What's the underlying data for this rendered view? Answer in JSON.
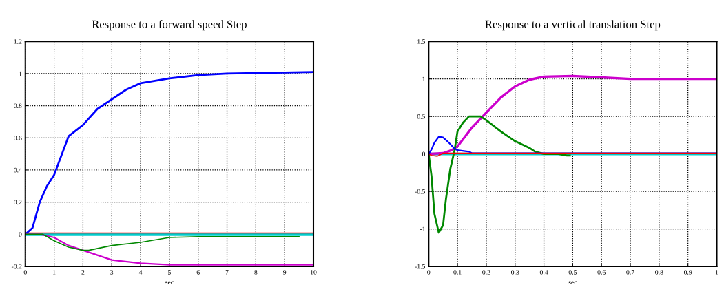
{
  "chart_data": [
    {
      "type": "line",
      "title": "Response to a forward speed Step",
      "xlabel": "sec",
      "xlim": [
        0,
        10
      ],
      "xticks": [
        0,
        1,
        2,
        3,
        4,
        5,
        6,
        7,
        8,
        9,
        10
      ],
      "ylim": [
        -0.2,
        1.2
      ],
      "yticks": [
        -0.2,
        0,
        0.2,
        0.4,
        0.6,
        0.8,
        1,
        1.2
      ],
      "grid": true,
      "line_style": "solid",
      "series": [
        {
          "color": "#ff0000",
          "x": [
            0,
            10
          ],
          "values": [
            0.003,
            0.003
          ]
        },
        {
          "color": "#00cccc",
          "x": [
            0,
            10
          ],
          "values": [
            -0.003,
            -0.003
          ]
        },
        {
          "color": "#0000ff",
          "x": [
            0,
            0.25,
            0.5,
            0.75,
            1,
            1.5,
            2,
            2.5,
            3,
            3.5,
            4,
            5,
            6,
            7,
            10
          ],
          "values": [
            0,
            0.04,
            0.2,
            0.3,
            0.37,
            0.61,
            0.68,
            0.78,
            0.84,
            0.9,
            0.94,
            0.97,
            0.99,
            1,
            1.01
          ]
        },
        {
          "color": "#cc00cc",
          "x": [
            0,
            0.5,
            1,
            1.5,
            2,
            2.5,
            3,
            4,
            5,
            10
          ],
          "values": [
            0,
            0,
            -0.02,
            -0.07,
            -0.1,
            -0.13,
            -0.16,
            -0.18,
            -0.19,
            -0.19
          ]
        },
        {
          "color": "#008800",
          "x": [
            0,
            0.6,
            1,
            1.5,
            2,
            2.2,
            3,
            4,
            5,
            6,
            9.5
          ],
          "values": [
            0,
            0,
            -0.04,
            -0.08,
            -0.1,
            -0.1,
            -0.07,
            -0.05,
            -0.02,
            -0.015,
            -0.015
          ]
        }
      ]
    },
    {
      "type": "line",
      "title": "Response to a vertical translation Step",
      "xlabel": "sec",
      "xlim": [
        0,
        1
      ],
      "xticks": [
        0,
        0.1,
        0.2,
        0.3,
        0.4,
        0.5,
        0.6,
        0.7,
        0.8,
        0.9,
        1
      ],
      "ylim": [
        -1.5,
        1.5
      ],
      "yticks": [
        -1.5,
        -1,
        -0.5,
        0,
        0.5,
        1,
        1.5
      ],
      "grid": true,
      "line_style": "solid",
      "series": [
        {
          "color": "#00cccc",
          "x": [
            0,
            1
          ],
          "values": [
            0,
            0
          ]
        },
        {
          "color": "#cc00cc",
          "x": [
            0,
            0.05,
            0.08,
            0.1,
            0.15,
            0.2,
            0.25,
            0.3,
            0.35,
            0.4,
            0.5,
            0.6,
            0.7,
            1
          ],
          "values": [
            0,
            0.01,
            0.05,
            0.1,
            0.35,
            0.55,
            0.75,
            0.9,
            0.99,
            1.03,
            1.04,
            1.02,
            1,
            1
          ]
        },
        {
          "color": "#008800",
          "x": [
            0,
            0.01,
            0.02,
            0.035,
            0.05,
            0.06,
            0.075,
            0.09,
            0.1,
            0.12,
            0.14,
            0.18,
            0.2,
            0.25,
            0.3,
            0.35,
            0.37,
            0.4,
            0.45,
            0.48,
            0.49
          ],
          "values": [
            0,
            -0.3,
            -0.8,
            -1.05,
            -0.95,
            -0.6,
            -0.2,
            0.05,
            0.3,
            0.42,
            0.5,
            0.5,
            0.45,
            0.3,
            0.17,
            0.08,
            0.03,
            0,
            0,
            -0.02,
            -0.02
          ]
        },
        {
          "color": "#0000ff",
          "x": [
            0,
            0.01,
            0.02,
            0.035,
            0.05,
            0.07,
            0.09,
            0.1,
            0.14,
            0.15,
            1
          ],
          "values": [
            0,
            0.06,
            0.15,
            0.23,
            0.22,
            0.15,
            0.07,
            0.05,
            0.03,
            0.01,
            0.01
          ]
        },
        {
          "color": "#ff0000",
          "x": [
            0,
            0.01,
            0.03,
            0.04,
            0.05,
            1
          ],
          "values": [
            0,
            -0.02,
            -0.03,
            -0.01,
            0.01,
            0.01
          ]
        }
      ]
    }
  ]
}
